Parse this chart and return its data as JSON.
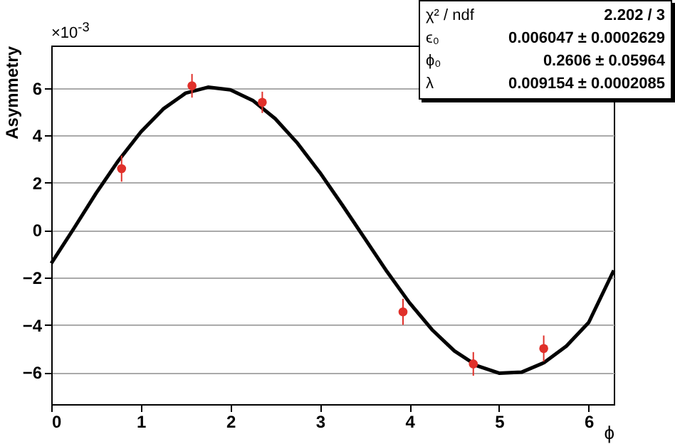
{
  "chart_data": {
    "type": "scatter",
    "xlabel": "ϕ",
    "ylabel": "Asymmetry",
    "xlim": [
      0,
      6.28
    ],
    "ylim": [
      -7.35,
      7.8
    ],
    "xticks": [
      0,
      1,
      2,
      3,
      4,
      5,
      6
    ],
    "yticks": [
      -6,
      -4,
      -2,
      0,
      2,
      4,
      6
    ],
    "grid": "y",
    "marker": "circle",
    "annotations": [
      "×10$^{-3}$",
      "χ² / ndf",
      "2.202 / 3",
      "ϵ₀",
      "0.006047 ± 0.0002629",
      "ϕ₀",
      "0.2606 ± 0.05964",
      "λ",
      "0.009154 ± 0.0002085"
    ],
    "series": [
      {
        "color": "#e0302a",
        "x": [
          0.785,
          1.571,
          2.356,
          3.927,
          4.712,
          5.498
        ],
        "values": [
          2.6,
          6.1,
          5.4,
          -3.45,
          -5.65,
          -5.0
        ],
        "errors": [
          0.55,
          0.5,
          0.45,
          0.55,
          0.5,
          0.55
        ]
      },
      {
        "type": "line",
        "marker": "none",
        "color": "#000000",
        "x": [
          0,
          0.25,
          0.5,
          0.75,
          1.0,
          1.25,
          1.5,
          1.75,
          2.0,
          2.25,
          2.5,
          2.75,
          3.0,
          3.25,
          3.5,
          3.75,
          4.0,
          4.25,
          4.5,
          4.75,
          5.0,
          5.25,
          5.5,
          5.75,
          6.0,
          6.28
        ],
        "values": [
          -1.4,
          0.06,
          1.56,
          2.94,
          4.15,
          5.12,
          5.79,
          6.04,
          5.93,
          5.48,
          4.71,
          3.67,
          2.43,
          1.06,
          -0.35,
          -1.76,
          -3.07,
          -4.2,
          -5.1,
          -5.72,
          -6.04,
          -6.0,
          -5.6,
          -4.9,
          -3.9,
          -1.7
        ]
      }
    ]
  }
}
